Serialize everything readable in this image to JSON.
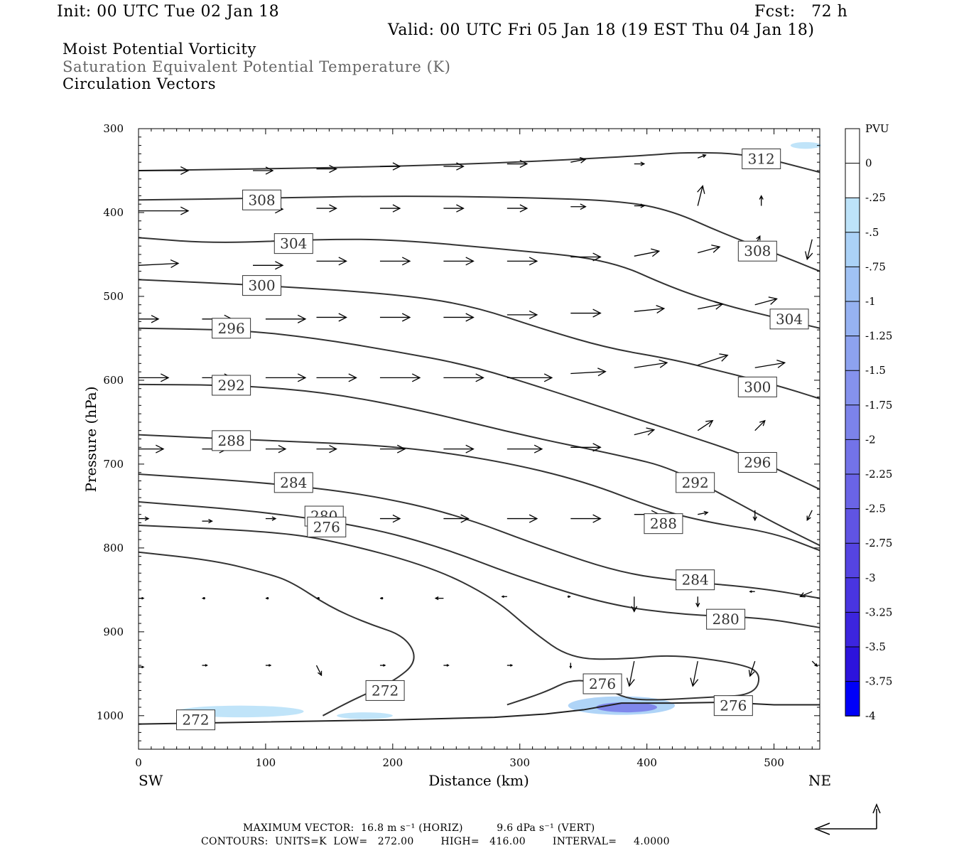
{
  "header": {
    "init": "Init: 00 UTC Tue 02 Jan 18",
    "fcst": "Fcst:   72 h",
    "valid": "Valid: 00 UTC Fri 05 Jan 18 (19 EST Thu 04 Jan 18)",
    "field1": "Moist Potential Vorticity",
    "field2": "Saturation Equivalent Potential Temperature (K)",
    "field3": "Circulation Vectors"
  },
  "footer": {
    "max_vector": "MAXIMUM VECTOR:  16.8 m s⁻¹ (HORIZ)          9.6 dPa s⁻¹ (VERT)",
    "contours": "CONTOURS:  UNITS=K  LOW=   272.00        HIGH=   416.00        INTERVAL=     4.0000"
  },
  "colorbar": {
    "title": "PVU",
    "labels": [
      "0",
      "-.25",
      "-.5",
      "-.75",
      "-1",
      "-1.25",
      "-1.5",
      "-1.75",
      "-2",
      "-2.25",
      "-2.5",
      "-2.75",
      "-3",
      "-3.25",
      "-3.5",
      "-3.75",
      "-4"
    ],
    "colors": [
      "#ffffff",
      "#ffffff",
      "#bde3f9",
      "#abd2f7",
      "#a0c2f4",
      "#96b2f2",
      "#8da2ef",
      "#8592ed",
      "#7c83ea",
      "#7373e8",
      "#6a64e6",
      "#6054e3",
      "#5544e2",
      "#4935e0",
      "#3c25de",
      "#2c13dc",
      "#0000f8"
    ]
  },
  "chart_data": {
    "type": "contour",
    "xlabel": "Distance (km)",
    "ylabel": "Pressure (hPa)",
    "x_ticks": [
      0,
      100,
      200,
      300,
      400,
      500
    ],
    "y_ticks": [
      300,
      400,
      500,
      600,
      700,
      800,
      900,
      1000
    ],
    "xlim": [
      0,
      536
    ],
    "ylim": [
      1040,
      300
    ],
    "x_end_labels": {
      "left": "SW",
      "right": "NE"
    },
    "contour_interval": 4,
    "isentropes": [
      {
        "label": "312",
        "points": [
          [
            0,
            350
          ],
          [
            100,
            348
          ],
          [
            200,
            345
          ],
          [
            300,
            340
          ],
          [
            400,
            332
          ],
          [
            430,
            328
          ],
          [
            480,
            330
          ],
          [
            536,
            352
          ]
        ],
        "label_at": [
          490,
          336
        ]
      },
      {
        "label": "308",
        "points": [
          [
            0,
            385
          ],
          [
            100,
            383
          ],
          [
            200,
            380
          ],
          [
            300,
            382
          ],
          [
            380,
            386
          ],
          [
            420,
            398
          ],
          [
            460,
            425
          ],
          [
            500,
            448
          ],
          [
            536,
            470
          ]
        ],
        "label_at": [
          97,
          385
        ],
        "label2": "308",
        "label2_at": [
          487,
          446
        ]
      },
      {
        "label": "304",
        "points": [
          [
            0,
            430
          ],
          [
            60,
            437
          ],
          [
            140,
            432
          ],
          [
            200,
            432
          ],
          [
            290,
            444
          ],
          [
            370,
            456
          ],
          [
            420,
            490
          ],
          [
            460,
            510
          ],
          [
            500,
            525
          ],
          [
            536,
            538
          ]
        ],
        "label_at": [
          122,
          437
        ],
        "label2": "304",
        "label2_at": [
          512,
          527
        ]
      },
      {
        "label": "300",
        "points": [
          [
            0,
            480
          ],
          [
            100,
            487
          ],
          [
            200,
            497
          ],
          [
            260,
            510
          ],
          [
            320,
            540
          ],
          [
            370,
            562
          ],
          [
            420,
            575
          ],
          [
            460,
            590
          ],
          [
            500,
            605
          ],
          [
            536,
            622
          ]
        ],
        "label_at": [
          97,
          487
        ],
        "label2": "300",
        "label2_at": [
          487,
          608
        ]
      },
      {
        "label": "296",
        "points": [
          [
            0,
            538
          ],
          [
            80,
            540
          ],
          [
            140,
            550
          ],
          [
            200,
            565
          ],
          [
            260,
            582
          ],
          [
            320,
            610
          ],
          [
            380,
            640
          ],
          [
            420,
            660
          ],
          [
            480,
            690
          ],
          [
            536,
            730
          ]
        ],
        "label_at": [
          73,
          538
        ],
        "label2": "296",
        "label2_at": [
          487,
          698
        ]
      },
      {
        "label": "292",
        "points": [
          [
            0,
            605
          ],
          [
            80,
            606
          ],
          [
            150,
            615
          ],
          [
            220,
            635
          ],
          [
            300,
            665
          ],
          [
            380,
            690
          ],
          [
            420,
            705
          ],
          [
            470,
            745
          ],
          [
            500,
            770
          ],
          [
            536,
            797
          ]
        ],
        "label_at": [
          73,
          606
        ],
        "label2": "292",
        "label2_at": [
          438,
          722
        ]
      },
      {
        "label": "288",
        "points": [
          [
            0,
            665
          ],
          [
            100,
            672
          ],
          [
            200,
            678
          ],
          [
            280,
            695
          ],
          [
            350,
            720
          ],
          [
            410,
            755
          ],
          [
            450,
            770
          ],
          [
            500,
            782
          ],
          [
            536,
            803
          ]
        ],
        "label_at": [
          73,
          672
        ],
        "label2": "288",
        "label2_at": [
          413,
          771
        ]
      },
      {
        "label": "284",
        "points": [
          [
            0,
            712
          ],
          [
            100,
            722
          ],
          [
            180,
            736
          ],
          [
            250,
            760
          ],
          [
            320,
            800
          ],
          [
            380,
            830
          ],
          [
            430,
            840
          ],
          [
            490,
            848
          ],
          [
            536,
            860
          ]
        ],
        "label_at": [
          122,
          722
        ],
        "label2": "284",
        "label2_at": [
          438,
          838
        ]
      },
      {
        "label": "280",
        "points": [
          [
            0,
            745
          ],
          [
            100,
            757
          ],
          [
            180,
            775
          ],
          [
            240,
            800
          ],
          [
            300,
            835
          ],
          [
            370,
            868
          ],
          [
            430,
            880
          ],
          [
            490,
            883
          ],
          [
            536,
            895
          ]
        ],
        "label_at": [
          146,
          762
        ],
        "label2": "280",
        "label2_at": [
          462,
          885
        ]
      },
      {
        "label": "276",
        "points": [
          [
            0,
            773
          ],
          [
            100,
            780
          ],
          [
            150,
            790
          ],
          [
            230,
            822
          ],
          [
            280,
            860
          ],
          [
            310,
            900
          ],
          [
            340,
            932
          ],
          [
            380,
            933
          ],
          [
            420,
            927
          ],
          [
            470,
            937
          ],
          [
            490,
            948
          ],
          [
            485,
            975
          ],
          [
            450,
            978
          ],
          [
            400,
            982
          ],
          [
            380,
            978
          ],
          [
            360,
            960
          ],
          [
            340,
            957
          ],
          [
            320,
            972
          ],
          [
            290,
            987
          ]
        ],
        "label_at": [
          148,
          775
        ],
        "label2": "276",
        "label2_at": [
          365,
          962
        ],
        "label3": "276",
        "label3_at": [
          468,
          988
        ]
      },
      {
        "label": "272",
        "points": [
          [
            0,
            805
          ],
          [
            60,
            815
          ],
          [
            100,
            830
          ],
          [
            120,
            840
          ],
          [
            150,
            870
          ],
          [
            180,
            890
          ],
          [
            210,
            905
          ],
          [
            220,
            935
          ],
          [
            200,
            960
          ],
          [
            170,
            980
          ],
          [
            145,
            1000
          ]
        ],
        "label_at": [
          194,
          970
        ],
        "label2": "272",
        "label2_at": [
          45,
          1005
        ]
      }
    ],
    "surface": {
      "points": [
        [
          0,
          1010
        ],
        [
          200,
          1005
        ],
        [
          280,
          1002
        ],
        [
          320,
          998
        ],
        [
          350,
          993
        ],
        [
          380,
          985
        ],
        [
          420,
          985
        ],
        [
          460,
          984
        ],
        [
          500,
          987
        ],
        [
          536,
          987
        ]
      ]
    },
    "pv_shading": [
      {
        "cx": 80,
        "cy": 995,
        "rx": 50,
        "ry": 7,
        "value": -0.25
      },
      {
        "cx": 178,
        "cy": 1000,
        "rx": 22,
        "ry": 4,
        "value": -0.25
      },
      {
        "cx": 380,
        "cy": 988,
        "rx": 42,
        "ry": 11,
        "value": -0.5
      },
      {
        "cx": 384,
        "cy": 990,
        "rx": 24,
        "ry": 6,
        "value": -1.75
      },
      {
        "cx": 525,
        "cy": 320,
        "rx": 12,
        "ry": 4,
        "value": -0.25
      }
    ],
    "vectors": [
      [
        0,
        350,
        50,
        0
      ],
      [
        90,
        350,
        20,
        0
      ],
      [
        140,
        348,
        20,
        0
      ],
      [
        190,
        345,
        20,
        0
      ],
      [
        240,
        345,
        20,
        0
      ],
      [
        290,
        342,
        20,
        0
      ],
      [
        340,
        340,
        15,
        -3
      ],
      [
        390,
        342,
        10,
        0
      ],
      [
        440,
        335,
        8,
        -3
      ],
      [
        0,
        398,
        50,
        0
      ],
      [
        90,
        396,
        30,
        0
      ],
      [
        140,
        395,
        20,
        0
      ],
      [
        190,
        395,
        20,
        0
      ],
      [
        240,
        395,
        20,
        0
      ],
      [
        290,
        395,
        20,
        0
      ],
      [
        340,
        393,
        15,
        0
      ],
      [
        390,
        392,
        10,
        0
      ],
      [
        440,
        392,
        5,
        -20
      ],
      [
        490,
        392,
        0,
        -10
      ],
      [
        0,
        463,
        40,
        -2
      ],
      [
        90,
        463,
        30,
        0
      ],
      [
        140,
        458,
        30,
        0
      ],
      [
        190,
        458,
        30,
        0
      ],
      [
        240,
        458,
        30,
        0
      ],
      [
        290,
        458,
        30,
        0
      ],
      [
        340,
        453,
        30,
        0
      ],
      [
        390,
        452,
        25,
        -5
      ],
      [
        440,
        448,
        22,
        -6
      ],
      [
        485,
        440,
        5,
        -10
      ],
      [
        530,
        432,
        -5,
        20
      ],
      [
        0,
        527,
        20,
        0
      ],
      [
        50,
        527,
        30,
        0
      ],
      [
        100,
        527,
        40,
        0
      ],
      [
        140,
        525,
        30,
        0
      ],
      [
        190,
        525,
        30,
        0
      ],
      [
        240,
        525,
        30,
        0
      ],
      [
        290,
        522,
        30,
        0
      ],
      [
        340,
        520,
        30,
        0
      ],
      [
        390,
        518,
        30,
        -3
      ],
      [
        440,
        515,
        25,
        -5
      ],
      [
        485,
        510,
        22,
        -6
      ],
      [
        0,
        597,
        30,
        0
      ],
      [
        50,
        597,
        30,
        0
      ],
      [
        100,
        597,
        40,
        0
      ],
      [
        140,
        597,
        40,
        0
      ],
      [
        190,
        597,
        40,
        0
      ],
      [
        240,
        597,
        40,
        0
      ],
      [
        290,
        597,
        45,
        0
      ],
      [
        340,
        592,
        35,
        -2
      ],
      [
        390,
        585,
        33,
        -5
      ],
      [
        440,
        582,
        30,
        -10
      ],
      [
        485,
        585,
        30,
        -5
      ],
      [
        0,
        682,
        25,
        0
      ],
      [
        50,
        682,
        25,
        0
      ],
      [
        100,
        682,
        20,
        0
      ],
      [
        140,
        682,
        20,
        0
      ],
      [
        190,
        682,
        25,
        0
      ],
      [
        240,
        682,
        30,
        0
      ],
      [
        290,
        682,
        35,
        0
      ],
      [
        340,
        680,
        30,
        0
      ],
      [
        390,
        665,
        20,
        -5
      ],
      [
        440,
        660,
        15,
        -10
      ],
      [
        485,
        660,
        10,
        -10
      ],
      [
        0,
        765,
        10,
        0
      ],
      [
        50,
        768,
        10,
        0
      ],
      [
        100,
        765,
        10,
        0
      ],
      [
        140,
        765,
        15,
        0
      ],
      [
        190,
        765,
        20,
        0
      ],
      [
        240,
        765,
        25,
        0
      ],
      [
        290,
        765,
        30,
        0
      ],
      [
        340,
        765,
        30,
        0
      ],
      [
        390,
        760,
        25,
        0
      ],
      [
        440,
        760,
        10,
        -2
      ],
      [
        485,
        755,
        0,
        10
      ],
      [
        530,
        755,
        -5,
        10
      ],
      [
        0,
        860,
        5,
        0
      ],
      [
        50,
        860,
        2,
        0
      ],
      [
        100,
        860,
        2,
        0
      ],
      [
        140,
        860,
        2,
        0
      ],
      [
        190,
        860,
        2,
        0
      ],
      [
        240,
        860,
        -8,
        0
      ],
      [
        290,
        858,
        -5,
        0
      ],
      [
        340,
        858,
        -2,
        0
      ],
      [
        390,
        858,
        0,
        15
      ],
      [
        440,
        858,
        0,
        10
      ],
      [
        485,
        852,
        -5,
        0
      ],
      [
        530,
        852,
        -12,
        5
      ],
      [
        0,
        942,
        5,
        0
      ],
      [
        50,
        940,
        5,
        0
      ],
      [
        100,
        940,
        5,
        0
      ],
      [
        140,
        940,
        5,
        10
      ],
      [
        190,
        940,
        5,
        0
      ],
      [
        240,
        940,
        5,
        0
      ],
      [
        290,
        940,
        5,
        0
      ],
      [
        340,
        937,
        0,
        5
      ],
      [
        390,
        935,
        -5,
        25
      ],
      [
        440,
        935,
        -5,
        25
      ],
      [
        485,
        935,
        -5,
        15
      ],
      [
        530,
        935,
        5,
        5
      ]
    ]
  }
}
